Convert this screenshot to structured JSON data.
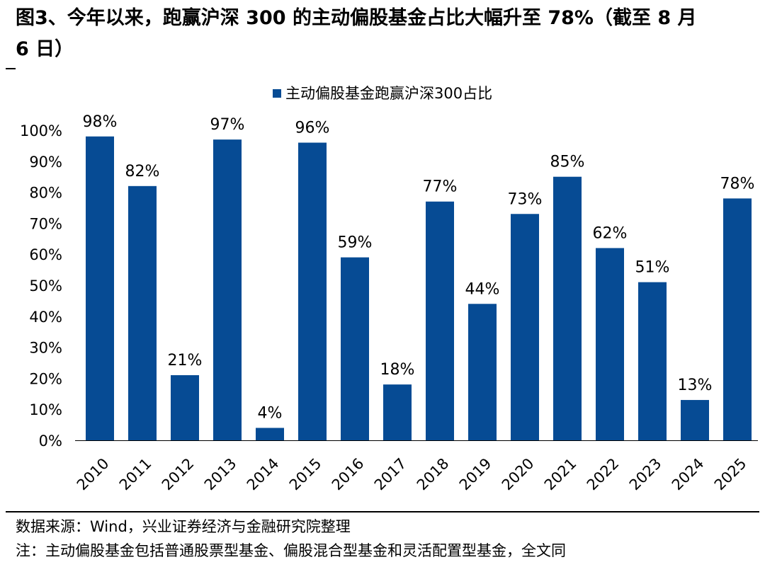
{
  "figure": {
    "title_line1": "图3、今年以来，跑赢沪深 300 的主动偏股基金占比大幅升至 78%（截至 8 月",
    "title_line2": "6 日）",
    "source": "数据来源：Wind，兴业证券经济与金融研究院整理",
    "note": "注：主动偏股基金包括普通股票型基金、偏股混合型基金和灵活配置型基金，全文同"
  },
  "colors": {
    "bar": "#064b94",
    "text": "#000000"
  },
  "chart_data": {
    "type": "bar",
    "categories": [
      "2010",
      "2011",
      "2012",
      "2013",
      "2014",
      "2015",
      "2016",
      "2017",
      "2018",
      "2019",
      "2020",
      "2021",
      "2022",
      "2023",
      "2024",
      "2025"
    ],
    "series": [
      {
        "name": "主动偏股基金跑赢沪深300占比",
        "values": [
          98,
          82,
          21,
          97,
          4,
          96,
          59,
          18,
          77,
          44,
          73,
          85,
          62,
          51,
          13,
          78
        ],
        "labels": [
          "98%",
          "82%",
          "21%",
          "97%",
          "4%",
          "96%",
          "59%",
          "18%",
          "77%",
          "44%",
          "73%",
          "85%",
          "62%",
          "51%",
          "13%",
          "78%"
        ]
      }
    ],
    "ylim": [
      0,
      100
    ],
    "yticks": [
      0,
      10,
      20,
      30,
      40,
      50,
      60,
      70,
      80,
      90,
      100
    ],
    "ytick_labels": [
      "0%",
      "10%",
      "20%",
      "30%",
      "40%",
      "50%",
      "60%",
      "70%",
      "80%",
      "90%",
      "100%"
    ],
    "grid": false,
    "legend_position": "top-center"
  }
}
